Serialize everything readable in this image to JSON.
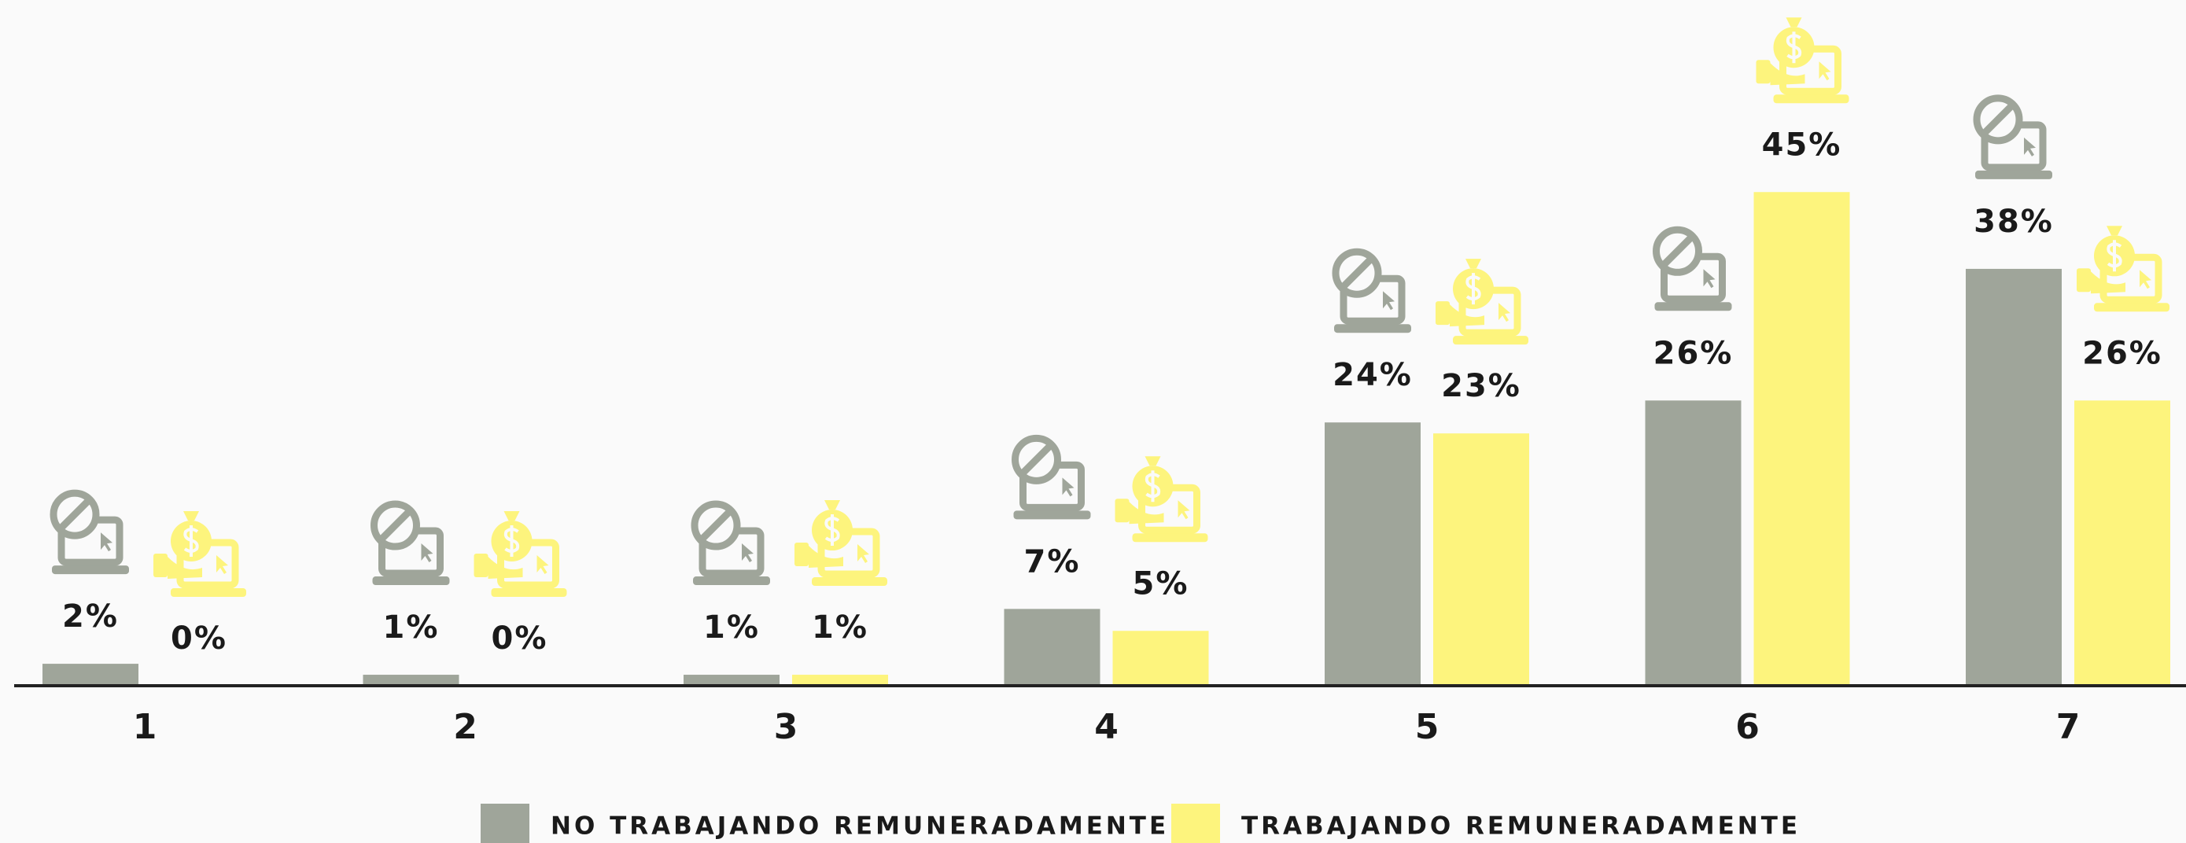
{
  "chart_data": {
    "type": "bar",
    "categories": [
      "1",
      "2",
      "3",
      "4",
      "5",
      "6",
      "7"
    ],
    "series": [
      {
        "name": "NO TRABAJANDO REMUNERADAMENTE",
        "color": "#9fa59a",
        "values": [
          2,
          1,
          1,
          7,
          24,
          26,
          38
        ],
        "value_labels": [
          "2%",
          "1%",
          "1%",
          "7%",
          "24%",
          "26%",
          "38%"
        ]
      },
      {
        "name": "TRABAJANDO REMUNERADAMENTE",
        "color": "#fdf47d",
        "values": [
          0,
          0,
          1,
          5,
          23,
          45,
          26
        ],
        "value_labels": [
          "0%",
          "0%",
          "1%",
          "5%",
          "23%",
          "45%",
          "26%"
        ]
      }
    ],
    "ylim": [
      0,
      60
    ]
  }
}
